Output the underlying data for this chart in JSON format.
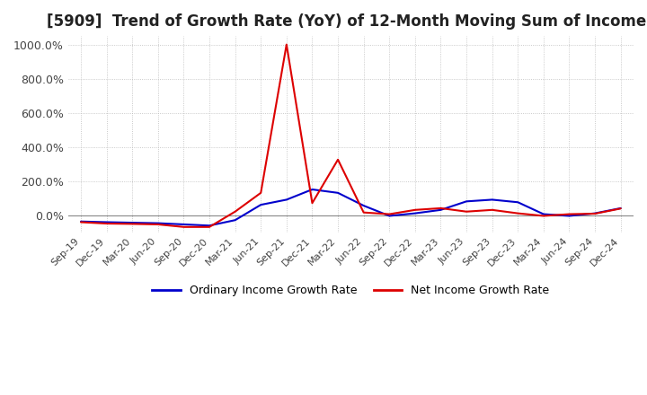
{
  "title": "[5909]  Trend of Growth Rate (YoY) of 12-Month Moving Sum of Incomes",
  "title_fontsize": 12,
  "ylim": [
    -100,
    1050
  ],
  "yticks": [
    0,
    200,
    400,
    600,
    800,
    1000
  ],
  "ytick_labels": [
    "0.0%",
    "200.0%",
    "400.0%",
    "600.0%",
    "800.0%",
    "1000.0%"
  ],
  "background_color": "#ffffff",
  "grid_color": "#bbbbbb",
  "legend_labels": [
    "Ordinary Income Growth Rate",
    "Net Income Growth Rate"
  ],
  "legend_colors": [
    "#0000cc",
    "#dd0000"
  ],
  "x_labels": [
    "Sep-19",
    "Dec-19",
    "Mar-20",
    "Jun-20",
    "Sep-20",
    "Dec-20",
    "Mar-21",
    "Jun-21",
    "Sep-21",
    "Dec-21",
    "Mar-22",
    "Jun-22",
    "Sep-22",
    "Dec-22",
    "Mar-23",
    "Jun-23",
    "Sep-23",
    "Dec-23",
    "Mar-24",
    "Jun-24",
    "Sep-24",
    "Dec-24"
  ],
  "ordinary_income": [
    -38,
    -42,
    -45,
    -48,
    -55,
    -62,
    -30,
    60,
    90,
    150,
    130,
    55,
    -5,
    10,
    30,
    80,
    90,
    75,
    5,
    -5,
    10,
    40
  ],
  "net_income": [
    -42,
    -50,
    -52,
    -55,
    -70,
    -70,
    20,
    130,
    1000,
    70,
    325,
    15,
    5,
    30,
    40,
    20,
    30,
    10,
    -5,
    5,
    8,
    38
  ]
}
